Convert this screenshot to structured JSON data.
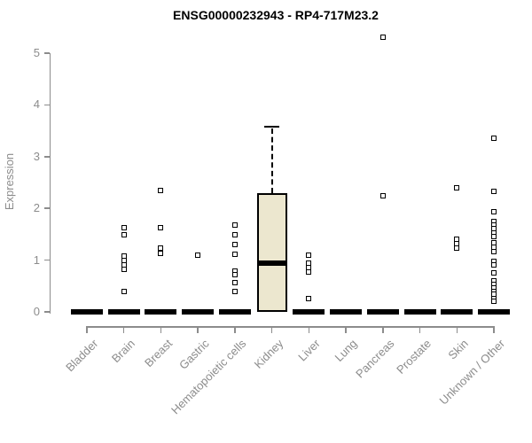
{
  "chart_data": {
    "type": "boxplot",
    "title": "ENSG00000232943 - RP4-717M23.2",
    "xlabel": "",
    "ylabel": "Expression",
    "ylim": [
      0,
      5
    ],
    "yticks": [
      0,
      1,
      2,
      3,
      4,
      5
    ],
    "grid": false,
    "legend": null,
    "categories": [
      "Bladder",
      "Brain",
      "Breast",
      "Gastric",
      "Hematopoietic cells",
      "Kidney",
      "Liver",
      "Lung",
      "Pancreas",
      "Prostate",
      "Skin",
      "Unknown / Other"
    ],
    "series": [
      {
        "category": "Bladder",
        "q1": 0,
        "median": 0,
        "q3": 0,
        "whisker_low": 0,
        "whisker_high": 0,
        "outliers": []
      },
      {
        "category": "Brain",
        "q1": 0,
        "median": 0,
        "q3": 0,
        "whisker_low": 0,
        "whisker_high": 0,
        "outliers": [
          1.63,
          1.49,
          1.08,
          0.99,
          0.91,
          0.83,
          0.39
        ]
      },
      {
        "category": "Breast",
        "q1": 0,
        "median": 0,
        "q3": 0,
        "whisker_low": 0,
        "whisker_high": 0,
        "outliers": [
          2.35,
          1.62,
          1.23,
          1.13
        ]
      },
      {
        "category": "Gastric",
        "q1": 0,
        "median": 0,
        "q3": 0,
        "whisker_low": 0,
        "whisker_high": 0,
        "outliers": [
          1.1
        ]
      },
      {
        "category": "Hematopoietic cells",
        "q1": 0,
        "median": 0,
        "q3": 0,
        "whisker_low": 0,
        "whisker_high": 0,
        "outliers": [
          1.68,
          1.49,
          1.3,
          1.11,
          0.78,
          0.72,
          0.57,
          0.39
        ]
      },
      {
        "category": "Kidney",
        "q1": 0,
        "median": 0.95,
        "q3": 2.29,
        "whisker_low": 0,
        "whisker_high": 3.58,
        "outliers": []
      },
      {
        "category": "Liver",
        "q1": 0,
        "median": 0,
        "q3": 0,
        "whisker_low": 0,
        "whisker_high": 0,
        "outliers": [
          1.1,
          0.94,
          0.86,
          0.77,
          0.26
        ]
      },
      {
        "category": "Lung",
        "q1": 0,
        "median": 0,
        "q3": 0,
        "whisker_low": 0,
        "whisker_high": 0,
        "outliers": []
      },
      {
        "category": "Pancreas",
        "q1": 0,
        "median": 0,
        "q3": 0,
        "whisker_low": 0,
        "whisker_high": 0,
        "outliers": [
          5.31,
          2.24
        ]
      },
      {
        "category": "Prostate",
        "q1": 0,
        "median": 0,
        "q3": 0,
        "whisker_low": 0,
        "whisker_high": 0,
        "outliers": []
      },
      {
        "category": "Skin",
        "q1": 0,
        "median": 0,
        "q3": 0,
        "whisker_low": 0,
        "whisker_high": 0,
        "outliers": [
          2.4,
          1.4,
          1.31,
          1.23
        ]
      },
      {
        "category": "Unknown / Other",
        "q1": 0,
        "median": 0,
        "q3": 0,
        "whisker_low": 0,
        "whisker_high": 0,
        "outliers": [
          3.36,
          2.33,
          1.93,
          1.74,
          1.68,
          1.61,
          1.53,
          1.46,
          1.34,
          1.25,
          1.16,
          0.97,
          0.91,
          0.75,
          0.6,
          0.53,
          0.46,
          0.4,
          0.34,
          0.25,
          0.2
        ]
      }
    ],
    "colors": {
      "box_fill": "#ECE7CF",
      "box_border": "#000000",
      "median": "#000000",
      "outlier_border": "#000000",
      "outlier_fill": "#FFFFFF",
      "axis": "#8C8C8C",
      "tick_text": "#8C8C8C",
      "title_text": "#000000",
      "background": "#FFFFFF"
    }
  }
}
